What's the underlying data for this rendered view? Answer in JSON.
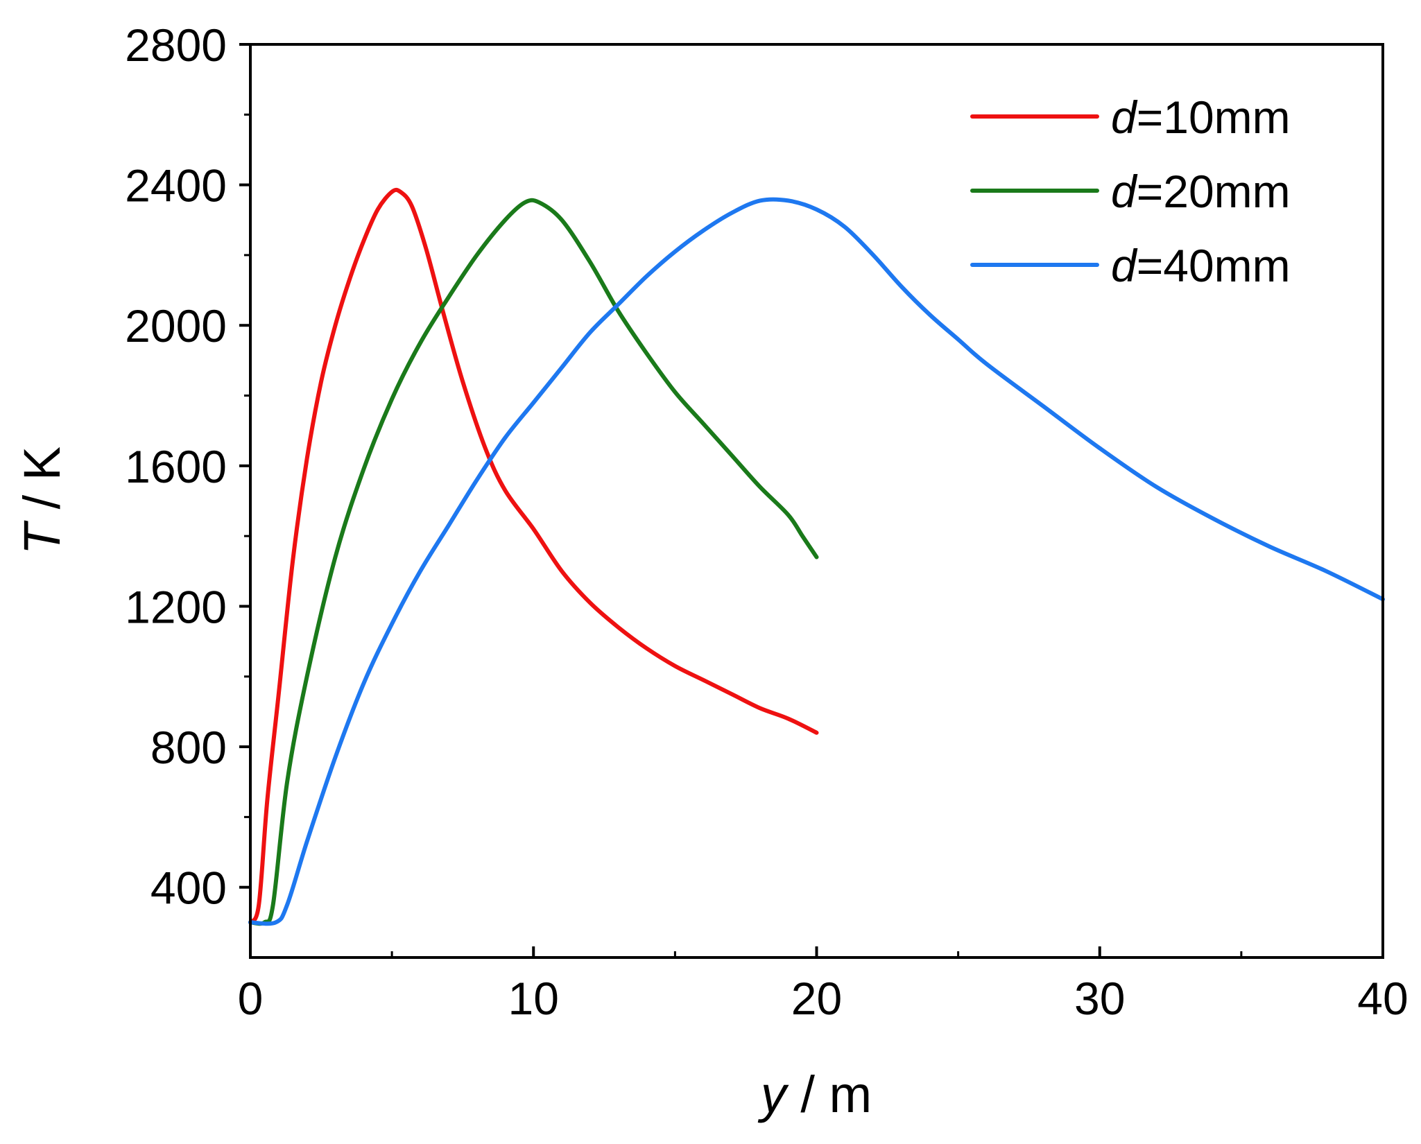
{
  "chart_data": {
    "type": "line",
    "title": "",
    "xlabel": {
      "var": "y",
      "unit": " / m"
    },
    "ylabel": {
      "var": "T",
      "unit": " / K"
    },
    "xlim": [
      0,
      40
    ],
    "ylim": [
      200,
      2800
    ],
    "xticks": [
      0,
      10,
      20,
      30,
      40
    ],
    "xticks_minor": [
      5,
      15,
      25,
      35
    ],
    "yticks": [
      400,
      800,
      1200,
      1600,
      2000,
      2400,
      2800
    ],
    "yticks_minor": [
      600,
      1000,
      1400,
      1800,
      2200,
      2600
    ],
    "xtick_labels": [
      "0",
      "10",
      "20",
      "30",
      "40"
    ],
    "ytick_labels": [
      "400",
      "800",
      "1200",
      "1600",
      "2000",
      "2400",
      "2800"
    ],
    "grid": false,
    "legend_position": "top-right",
    "series": [
      {
        "name_var": "d",
        "name_rest": "=10mm",
        "color": "#ee1111",
        "points": [
          [
            0,
            300
          ],
          [
            0.3,
            350
          ],
          [
            0.6,
            650
          ],
          [
            1,
            950
          ],
          [
            1.5,
            1330
          ],
          [
            2,
            1620
          ],
          [
            2.5,
            1840
          ],
          [
            3,
            2000
          ],
          [
            3.5,
            2130
          ],
          [
            4,
            2240
          ],
          [
            4.5,
            2330
          ],
          [
            5,
            2380
          ],
          [
            5.3,
            2380
          ],
          [
            5.7,
            2340
          ],
          [
            6.2,
            2220
          ],
          [
            6.8,
            2040
          ],
          [
            7.5,
            1840
          ],
          [
            8.3,
            1650
          ],
          [
            9,
            1530
          ],
          [
            10,
            1420
          ],
          [
            11,
            1300
          ],
          [
            12,
            1210
          ],
          [
            13,
            1140
          ],
          [
            14,
            1080
          ],
          [
            15,
            1030
          ],
          [
            16,
            990
          ],
          [
            17,
            950
          ],
          [
            18,
            910
          ],
          [
            19,
            880
          ],
          [
            20,
            840
          ]
        ]
      },
      {
        "name_var": "d",
        "name_rest": "=20mm",
        "color": "#1a7a1a",
        "points": [
          [
            0,
            300
          ],
          [
            0.5,
            300
          ],
          [
            0.8,
            350
          ],
          [
            1.3,
            700
          ],
          [
            2,
            1000
          ],
          [
            3,
            1340
          ],
          [
            4,
            1590
          ],
          [
            5,
            1790
          ],
          [
            6,
            1950
          ],
          [
            7,
            2080
          ],
          [
            8,
            2200
          ],
          [
            9,
            2300
          ],
          [
            9.7,
            2350
          ],
          [
            10.2,
            2350
          ],
          [
            11,
            2300
          ],
          [
            12,
            2180
          ],
          [
            13,
            2040
          ],
          [
            14,
            1920
          ],
          [
            15,
            1810
          ],
          [
            16,
            1720
          ],
          [
            17,
            1630
          ],
          [
            18,
            1540
          ],
          [
            19,
            1460
          ],
          [
            19.5,
            1400
          ],
          [
            20,
            1340
          ]
        ]
      },
      {
        "name_var": "d",
        "name_rest": "=40mm",
        "color": "#1e78f0",
        "points": [
          [
            0,
            300
          ],
          [
            0.9,
            300
          ],
          [
            1.3,
            350
          ],
          [
            2,
            530
          ],
          [
            3,
            770
          ],
          [
            4,
            980
          ],
          [
            5,
            1150
          ],
          [
            6,
            1300
          ],
          [
            7,
            1430
          ],
          [
            8,
            1560
          ],
          [
            9,
            1680
          ],
          [
            10,
            1780
          ],
          [
            11,
            1880
          ],
          [
            12,
            1980
          ],
          [
            13,
            2060
          ],
          [
            14,
            2140
          ],
          [
            15,
            2210
          ],
          [
            16,
            2270
          ],
          [
            17,
            2320
          ],
          [
            18,
            2355
          ],
          [
            19,
            2355
          ],
          [
            20,
            2330
          ],
          [
            21,
            2280
          ],
          [
            22,
            2200
          ],
          [
            23,
            2110
          ],
          [
            24,
            2030
          ],
          [
            25,
            1960
          ],
          [
            26,
            1890
          ],
          [
            28,
            1770
          ],
          [
            30,
            1650
          ],
          [
            32,
            1540
          ],
          [
            34,
            1450
          ],
          [
            36,
            1370
          ],
          [
            38,
            1300
          ],
          [
            40,
            1220
          ]
        ]
      }
    ]
  }
}
